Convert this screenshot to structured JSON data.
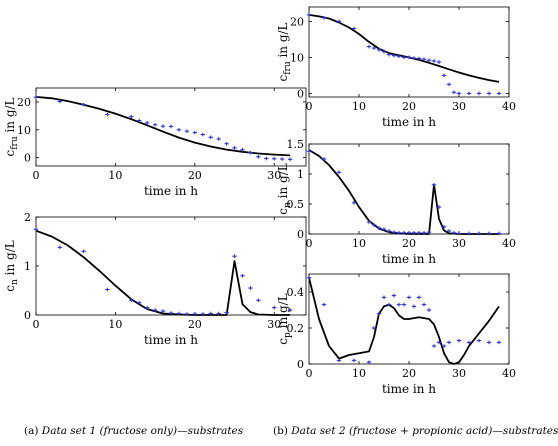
{
  "captions": {
    "a": {
      "tag": "(a)",
      "text": "Data set 1 (fructose only)—substrates"
    },
    "b": {
      "tag": "(b)",
      "text": "Data set 2 (fructose + propionic acid)—substrates"
    }
  },
  "colors": {
    "model": "#000000",
    "measurement": "#3333dd"
  },
  "chart_data": [
    {
      "id": "a_fru",
      "type": "line",
      "title": "",
      "xlabel": "time in h",
      "ylabel_main": "c",
      "ylabel_sub": "fru",
      "ylabel_unit": " in g/L",
      "xlim": [
        0,
        34
      ],
      "ylim": [
        -3,
        25
      ],
      "xticks": [
        0,
        10,
        20,
        30
      ],
      "yticks": [
        0,
        10,
        20
      ],
      "series": [
        {
          "kind": "model",
          "x": [
            0,
            2,
            4,
            6,
            8,
            10,
            12,
            14,
            16,
            18,
            20,
            22,
            24,
            26,
            28,
            30,
            32
          ],
          "y": [
            21.8,
            21.3,
            20.3,
            19.0,
            17.5,
            15.8,
            13.8,
            11.6,
            9.3,
            7.2,
            5.4,
            4.0,
            2.9,
            2.1,
            1.5,
            1.1,
            0.8
          ]
        },
        {
          "kind": "measured",
          "x": [
            0,
            3,
            6,
            9,
            12,
            13,
            14,
            15,
            16,
            17,
            18,
            19,
            20,
            21,
            22,
            23,
            24,
            25,
            26,
            27,
            28,
            29,
            30,
            31,
            32
          ],
          "y": [
            21.7,
            20.2,
            19.0,
            15.5,
            14.7,
            13.3,
            12.5,
            11.8,
            11.3,
            11.2,
            10.0,
            9.5,
            9.0,
            8.3,
            7.3,
            6.7,
            5.0,
            3.5,
            2.8,
            1.8,
            0.3,
            -0.3,
            -0.4,
            -0.5,
            -0.6
          ]
        }
      ]
    },
    {
      "id": "a_n",
      "type": "line",
      "title": "",
      "xlabel": "time in h",
      "ylabel_main": "c",
      "ylabel_sub": "n",
      "ylabel_unit": " in g/L",
      "xlim": [
        0,
        34
      ],
      "ylim": [
        0,
        2
      ],
      "xticks": [
        0,
        10,
        20,
        30
      ],
      "yticks": [
        0,
        1,
        2
      ],
      "series": [
        {
          "kind": "model",
          "x": [
            0,
            2,
            4,
            6,
            8,
            10,
            12,
            14,
            16,
            18,
            20,
            22,
            24,
            25,
            26,
            27,
            28,
            30,
            32
          ],
          "y": [
            1.72,
            1.6,
            1.42,
            1.18,
            0.9,
            0.6,
            0.32,
            0.12,
            0.03,
            0.01,
            0.0,
            0.0,
            0.0,
            1.1,
            0.22,
            0.06,
            0.01,
            0.0,
            0.0
          ]
        },
        {
          "kind": "measured",
          "x": [
            0,
            3,
            6,
            9,
            12,
            13,
            14,
            15,
            16,
            17,
            18,
            19,
            20,
            21,
            22,
            23,
            24,
            25,
            26,
            27,
            28,
            30,
            32
          ],
          "y": [
            1.75,
            1.38,
            1.3,
            0.52,
            0.3,
            0.25,
            0.15,
            0.1,
            0.08,
            0.04,
            0.03,
            0.02,
            0.02,
            0.02,
            0.03,
            0.03,
            0.05,
            1.2,
            0.8,
            0.55,
            0.3,
            0.15,
            0.1
          ]
        }
      ]
    },
    {
      "id": "b_fru",
      "type": "line",
      "title": "",
      "xlabel": "time in h",
      "ylabel_main": "c",
      "ylabel_sub": "fru",
      "ylabel_unit": " in g/L",
      "xlim": [
        0,
        40
      ],
      "ylim": [
        -1,
        24
      ],
      "xticks": [
        0,
        10,
        20,
        30,
        40
      ],
      "yticks": [
        0,
        10,
        20
      ],
      "series": [
        {
          "kind": "model",
          "x": [
            0,
            2,
            4,
            6,
            8,
            10,
            12,
            14,
            16,
            18,
            20,
            22,
            24,
            26,
            28,
            30,
            32,
            34,
            36,
            38
          ],
          "y": [
            21.8,
            21.4,
            20.8,
            19.7,
            18.3,
            16.5,
            14.3,
            12.4,
            11.2,
            10.6,
            10.0,
            9.3,
            8.5,
            7.6,
            6.7,
            5.8,
            5.0,
            4.3,
            3.7,
            3.2
          ]
        },
        {
          "kind": "measured",
          "x": [
            0,
            3,
            6,
            9,
            12,
            13,
            14,
            15,
            16,
            17,
            18,
            19,
            20,
            21,
            22,
            23,
            24,
            25,
            26,
            27,
            28,
            29,
            30,
            32,
            34,
            36,
            38
          ],
          "y": [
            21.8,
            21.0,
            20.0,
            18.0,
            13.0,
            12.6,
            12.1,
            11.6,
            10.8,
            10.5,
            10.3,
            10.0,
            10.0,
            9.8,
            9.7,
            9.5,
            9.2,
            9.0,
            8.7,
            5.0,
            2.5,
            0.3,
            0.0,
            0.0,
            0.0,
            0.0,
            0.0
          ]
        }
      ]
    },
    {
      "id": "b_n",
      "type": "line",
      "title": "",
      "xlabel": "time in h",
      "ylabel_main": "c",
      "ylabel_sub": "n",
      "ylabel_unit": " in g/L",
      "xlim": [
        0,
        40
      ],
      "ylim": [
        0,
        1.5
      ],
      "xticks": [
        0,
        10,
        20,
        30,
        40
      ],
      "yticks": [
        0,
        0.5,
        1,
        1.5
      ],
      "series": [
        {
          "kind": "model",
          "x": [
            0,
            2,
            4,
            6,
            8,
            10,
            12,
            14,
            16,
            18,
            20,
            22,
            24,
            25,
            26,
            27,
            28,
            30,
            34,
            38
          ],
          "y": [
            1.4,
            1.3,
            1.15,
            0.95,
            0.72,
            0.45,
            0.22,
            0.09,
            0.03,
            0.01,
            0.0,
            0.0,
            0.0,
            0.82,
            0.25,
            0.06,
            0.01,
            0.0,
            0.0,
            0.0
          ]
        },
        {
          "kind": "measured",
          "x": [
            0,
            3,
            6,
            9,
            12,
            13,
            14,
            15,
            16,
            17,
            18,
            19,
            20,
            21,
            22,
            23,
            24,
            25,
            26,
            27,
            28,
            29,
            30,
            32,
            34,
            36,
            38
          ],
          "y": [
            1.38,
            1.25,
            1.03,
            0.52,
            0.2,
            0.15,
            0.1,
            0.08,
            0.05,
            0.03,
            0.02,
            0.02,
            0.02,
            0.02,
            0.02,
            0.02,
            0.03,
            0.82,
            0.45,
            0.12,
            0.05,
            0.02,
            0.01,
            0.01,
            0.01,
            0.01,
            0.01
          ]
        }
      ]
    },
    {
      "id": "b_p",
      "type": "line",
      "title": "",
      "xlabel": "time in h",
      "ylabel_main": "c",
      "ylabel_sub": "p",
      "ylabel_unit": " in g/L",
      "xlim": [
        0,
        40
      ],
      "ylim": [
        0,
        0.5
      ],
      "xticks": [
        0,
        10,
        20,
        30,
        40
      ],
      "yticks": [
        0,
        0.2,
        0.4
      ],
      "series": [
        {
          "kind": "model",
          "x": [
            0,
            2,
            4,
            6,
            8,
            10,
            12,
            13,
            14,
            15,
            16,
            17,
            18,
            19,
            20,
            22,
            24,
            25,
            26,
            27,
            28,
            29,
            30,
            31,
            32,
            34,
            36,
            38
          ],
          "y": [
            0.48,
            0.25,
            0.1,
            0.03,
            0.05,
            0.06,
            0.07,
            0.15,
            0.28,
            0.32,
            0.33,
            0.31,
            0.27,
            0.25,
            0.25,
            0.26,
            0.25,
            0.22,
            0.15,
            0.06,
            0.01,
            0.0,
            0.01,
            0.05,
            0.1,
            0.17,
            0.24,
            0.32
          ]
        },
        {
          "kind": "measured",
          "x": [
            0,
            3,
            6,
            9,
            12,
            13,
            14,
            15,
            16,
            17,
            18,
            19,
            20,
            21,
            22,
            23,
            24,
            25,
            26,
            27,
            28,
            30,
            32,
            34,
            36,
            38
          ],
          "y": [
            0.48,
            0.33,
            0.02,
            0.02,
            0.01,
            0.2,
            0.28,
            0.37,
            0.33,
            0.38,
            0.33,
            0.33,
            0.37,
            0.32,
            0.37,
            0.33,
            0.3,
            0.1,
            0.12,
            0.1,
            0.12,
            0.13,
            0.12,
            0.13,
            0.12,
            0.12
          ]
        }
      ]
    }
  ]
}
